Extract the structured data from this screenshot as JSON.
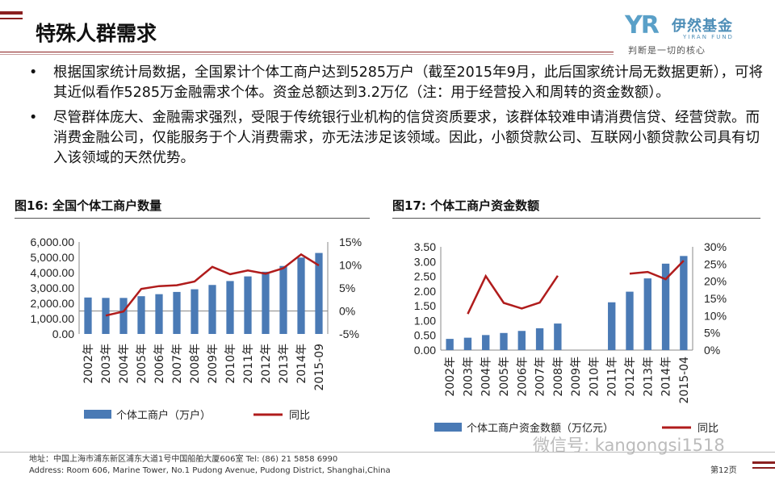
{
  "header": {
    "title": "特殊人群需求",
    "logo_mark": "YR",
    "logo_name": "伊然基金",
    "logo_en": "YIRAN FUND",
    "logo_slogan": "判断是一切的核心"
  },
  "bullets": [
    "根据国家统计局数据，全国累计个体工商户达到5285万户（截至2015年9月，此后国家统计局无数据更新），可将其近似看作5285万金融需求个体。资金总额达到3.2万亿（注：用于经营投入和周转的资金数额）。",
    "尽管群体庞大、金融需求强烈，受限于传统银行业机构的信贷资质要求，该群体较难申请消费信贷、经营贷款。而消费金融公司，仅能服务于个人消费需求，亦无法涉足该领域。因此，小额贷款公司、互联网小额贷款公司具有切入该领域的天然优势。"
  ],
  "bullet_symbol": "•",
  "colors": {
    "bar": "#4a7ab5",
    "line": "#b01c1c",
    "accent": "#8a1f1f"
  },
  "chart_data": [
    {
      "type": "bar",
      "title": "图16:  全国个体工商户数量",
      "categories": [
        "2002年",
        "2003年",
        "2004年",
        "2005年",
        "2006年",
        "2007年",
        "2008年",
        "2009年",
        "2010年",
        "2011年",
        "2012年",
        "2013年",
        "2014年",
        "2015-09"
      ],
      "series": [
        {
          "name": "个体工商户（万户）",
          "type": "bar",
          "axis": "left",
          "values": [
            2378,
            2353,
            2351,
            2464,
            2596,
            2742,
            2917,
            3197,
            3453,
            3756,
            4059,
            4436,
            4984,
            5285
          ]
        },
        {
          "name": "同比",
          "type": "line",
          "axis": "right",
          "values": [
            null,
            -1.0,
            -0.1,
            4.8,
            5.4,
            5.6,
            6.4,
            9.6,
            8.0,
            8.8,
            8.1,
            9.3,
            12.3,
            9.9
          ]
        }
      ],
      "y_left": {
        "ticks": [
          "6,000.00",
          "5,000.00",
          "4,000.00",
          "3,000.00",
          "2,000.00",
          "1,000.00",
          "0.00"
        ],
        "range": [
          0,
          6000
        ]
      },
      "y_right": {
        "ticks": [
          "15%",
          "10%",
          "5%",
          "0%",
          "-5%"
        ],
        "range": [
          -5,
          15
        ]
      }
    },
    {
      "type": "bar",
      "title": "图17:  个体工商户资金数额",
      "categories": [
        "2002年",
        "2003年",
        "2004年",
        "2005年",
        "2006年",
        "2007年",
        "2008年",
        "2009年",
        "2010年",
        "2011年",
        "2012年",
        "2013年",
        "2014年",
        "2015-04"
      ],
      "series": [
        {
          "name": "个体工商户资金数额（万亿元）",
          "type": "bar",
          "axis": "left",
          "values": [
            0.38,
            0.42,
            0.51,
            0.58,
            0.65,
            0.74,
            0.9,
            null,
            null,
            1.62,
            1.98,
            2.43,
            2.93,
            3.19
          ]
        },
        {
          "name": "同比",
          "type": "line",
          "axis": "right",
          "values": [
            null,
            10.5,
            21.5,
            13.7,
            12.1,
            13.8,
            21.6,
            null,
            null,
            null,
            22.2,
            22.7,
            20.6,
            26.0
          ]
        }
      ],
      "y_left": {
        "ticks": [
          "3.50",
          "3.00",
          "2.50",
          "2.00",
          "1.50",
          "1.00",
          "0.50",
          "0.00"
        ],
        "range": [
          0,
          3.5
        ]
      },
      "y_right": {
        "ticks": [
          "30%",
          "25%",
          "20%",
          "15%",
          "10%",
          "5%",
          "0%"
        ],
        "range": [
          0,
          30
        ]
      }
    }
  ],
  "footer": {
    "address_cn": "地址：中国上海市浦东新区浦东大道1号中国船舶大厦606室    Tel: (86) 21 5858 6990",
    "address_en": "Address: Room 606, Marine Tower, No.1 Pudong Avenue, Pudong District, Shanghai,China",
    "wechat": "微信号: kangongsi1518",
    "page": "第12页"
  }
}
